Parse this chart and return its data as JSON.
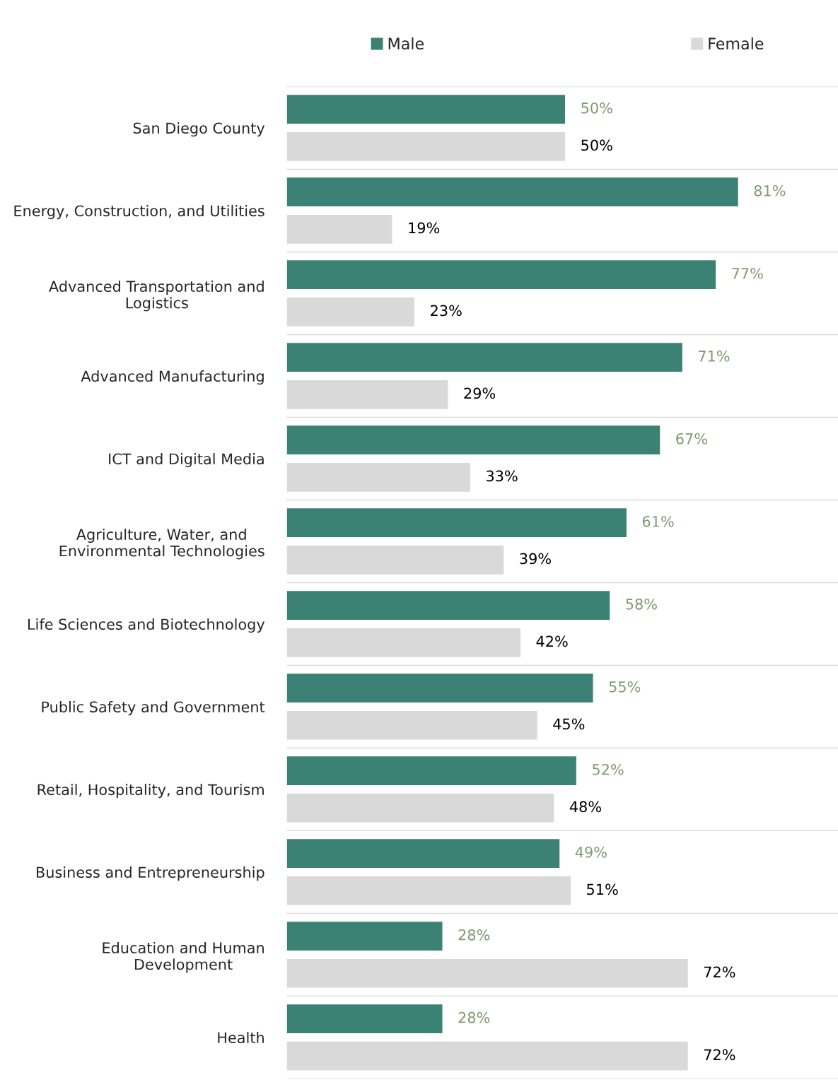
{
  "chart_data": {
    "type": "bar",
    "orientation": "horizontal",
    "categories": [
      "San Diego County",
      "Energy, Construction, and Utilities",
      "Advanced Transportation and\nLogistics",
      "Advanced Manufacturing",
      "ICT and Digital Media",
      "Agriculture, Water, and\nEnvironmental Technologies",
      "Life Sciences and Biotechnology",
      "Public Safety and Government",
      "Retail, Hospitality, and Tourism",
      "Business and Entrepreneurship",
      "Education and Human\nDevelopment",
      "Health"
    ],
    "series": [
      {
        "name": "Male",
        "color": "#3b8274",
        "values": [
          50,
          81,
          77,
          71,
          67,
          61,
          58,
          55,
          52,
          49,
          28,
          28
        ],
        "value_labels": [
          "50%",
          "81%",
          "77%",
          "71%",
          "67%",
          "61%",
          "58%",
          "55%",
          "52%",
          "49%",
          "28%",
          "28%"
        ]
      },
      {
        "name": "Female",
        "color": "#d9d9d9",
        "values": [
          50,
          19,
          23,
          29,
          33,
          39,
          42,
          45,
          48,
          51,
          72,
          72
        ],
        "value_labels": [
          "50%",
          "19%",
          "23%",
          "29%",
          "33%",
          "39%",
          "42%",
          "45%",
          "48%",
          "51%",
          "72%",
          "72%"
        ]
      }
    ],
    "grid": "y",
    "legend": "top"
  }
}
